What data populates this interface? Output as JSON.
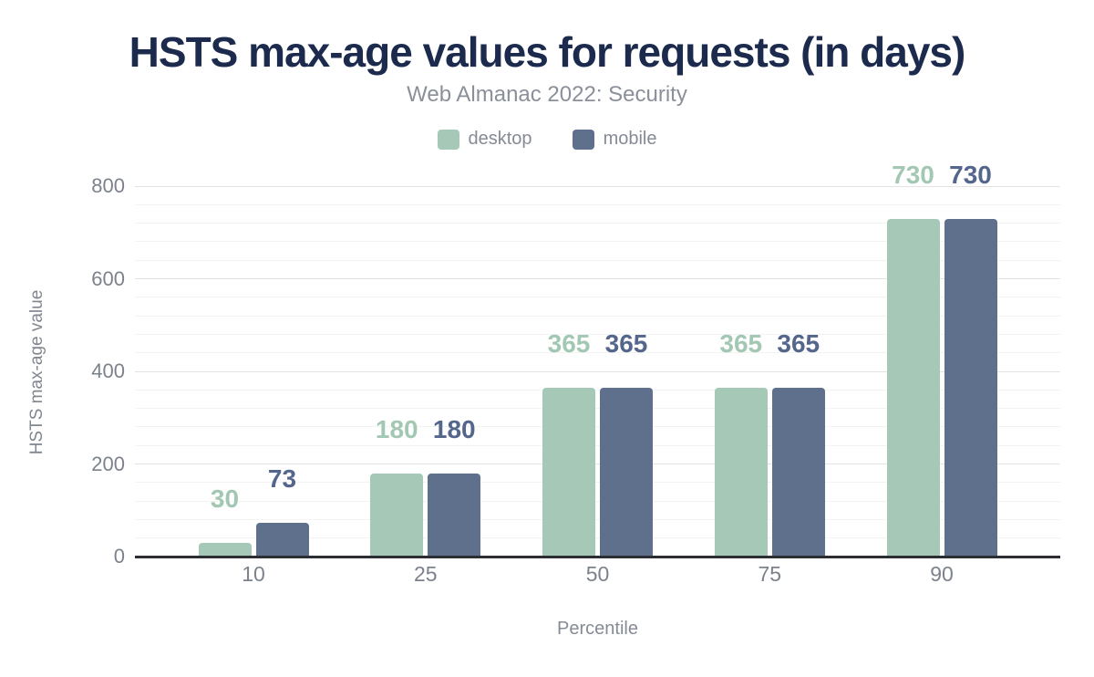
{
  "chart": {
    "title": "HSTS max-age values for requests (in days)",
    "subtitle": "Web Almanac 2022: Security"
  },
  "chart_data": {
    "type": "bar",
    "title": "HSTS max-age values for requests (in days)",
    "subtitle": "Web Almanac 2022: Security",
    "categories": [
      "10",
      "25",
      "50",
      "75",
      "90"
    ],
    "series": [
      {
        "name": "desktop",
        "color": "#a6c8b6",
        "label_color": "#a2c7b2",
        "values": [
          30,
          180,
          365,
          365,
          730
        ]
      },
      {
        "name": "mobile",
        "color": "#5f708c",
        "label_color": "#54668b",
        "values": [
          73,
          180,
          365,
          365,
          730
        ]
      }
    ],
    "xlabel": "Percentile",
    "ylabel": "HSTS max-age value",
    "ylim": [
      0,
      800
    ],
    "y_major_ticks": [
      0,
      200,
      400,
      600,
      800
    ],
    "y_minor_step": 40,
    "grid": true,
    "legend_position": "top",
    "data_labels": true,
    "colors": {
      "title": "#1c2b4d",
      "subtitle": "#8a909a",
      "axis_line": "#2c2e33",
      "tick_text": "#7c828c",
      "major_grid": "#e3e3e3",
      "minor_grid": "#f3f3f3"
    }
  }
}
